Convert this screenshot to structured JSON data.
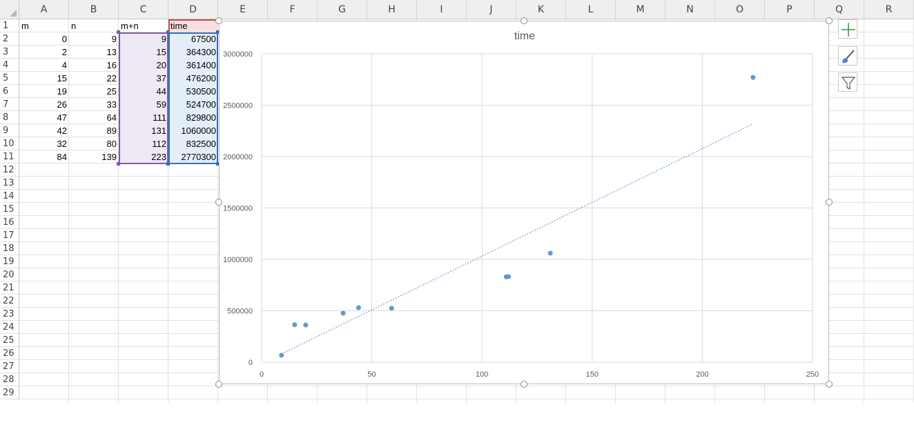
{
  "columns": [
    "A",
    "B",
    "C",
    "D",
    "E",
    "F",
    "G",
    "H",
    "I",
    "J",
    "K",
    "L",
    "M",
    "N",
    "O",
    "P",
    "Q",
    "R"
  ],
  "rows": [
    "1",
    "2",
    "3",
    "4",
    "5",
    "6",
    "7",
    "8",
    "9",
    "10",
    "11",
    "12",
    "13",
    "14",
    "15",
    "16",
    "17",
    "18",
    "19",
    "20",
    "21",
    "22",
    "23",
    "24",
    "25",
    "26",
    "27",
    "28",
    "29"
  ],
  "sheet": {
    "headers": {
      "A": "m",
      "B": "n",
      "C": "m+n",
      "D": "time"
    },
    "data": [
      {
        "A": "0",
        "B": "9",
        "C": "9",
        "D": "67500"
      },
      {
        "A": "2",
        "B": "13",
        "C": "15",
        "D": "364300"
      },
      {
        "A": "4",
        "B": "16",
        "C": "20",
        "D": "361400"
      },
      {
        "A": "15",
        "B": "22",
        "C": "37",
        "D": "476200"
      },
      {
        "A": "19",
        "B": "25",
        "C": "44",
        "D": "530500"
      },
      {
        "A": "26",
        "B": "33",
        "C": "59",
        "D": "524700"
      },
      {
        "A": "47",
        "B": "64",
        "C": "111",
        "D": "829800"
      },
      {
        "A": "42",
        "B": "89",
        "C": "131",
        "D": "1060000"
      },
      {
        "A": "32",
        "B": "80",
        "C": "112",
        "D": "832500"
      },
      {
        "A": "84",
        "B": "139",
        "C": "223",
        "D": "2770300"
      }
    ]
  },
  "colors": {
    "marker": "#5b9bd5",
    "gridline": "#d9d9d9",
    "range_x": "#7f5aa8",
    "range_y": "#2f6fc0",
    "range_title": "#c0504d",
    "add_element_icon": "#2e9a3b"
  },
  "chart_data": {
    "type": "scatter",
    "title": "time",
    "x": [
      9,
      15,
      20,
      37,
      44,
      59,
      111,
      131,
      112,
      223
    ],
    "y": [
      67500,
      364300,
      361400,
      476200,
      530500,
      524700,
      829800,
      1060000,
      832500,
      2770300
    ],
    "xlim": [
      0,
      250
    ],
    "ylim": [
      0,
      3000000
    ],
    "x_ticks": [
      "0",
      "50",
      "100",
      "150",
      "200",
      "250"
    ],
    "y_ticks": [
      "0",
      "500000",
      "1000000",
      "1500000",
      "2000000",
      "2500000",
      "3000000"
    ],
    "trendline": "linear, dotted",
    "grid": true,
    "legend": "none"
  },
  "side_buttons": [
    {
      "icon": "plus-icon"
    },
    {
      "icon": "paintbrush-icon"
    },
    {
      "icon": "filter-icon"
    }
  ]
}
